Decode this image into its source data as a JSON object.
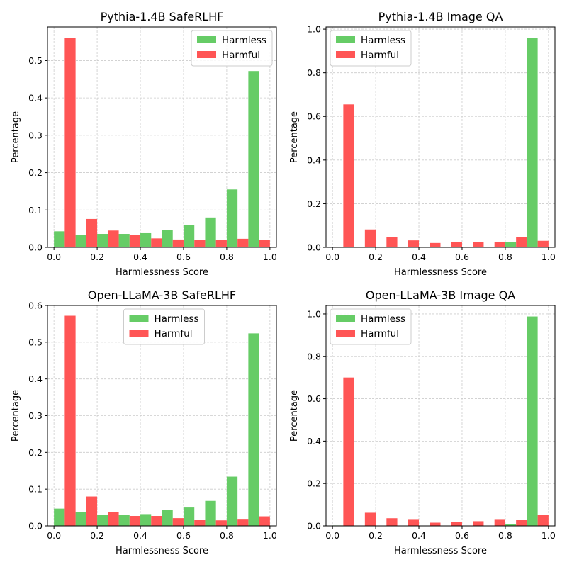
{
  "colors": {
    "harmless": "#66cc66",
    "harmful": "#ff5555"
  },
  "chart_data": [
    {
      "type": "bar",
      "title": "Pythia-1.4B SafeRLHF",
      "xlabel": "Harmlessness Score",
      "ylabel": "Percentage",
      "bin_edges": [
        0,
        0.1,
        0.2,
        0.3,
        0.4,
        0.5,
        0.6,
        0.7,
        0.8,
        0.9,
        1.0
      ],
      "xlim": [
        -0.03,
        1.03
      ],
      "ylim": [
        0,
        0.59
      ],
      "xticks": [
        0.0,
        0.2,
        0.4,
        0.6,
        0.8,
        1.0
      ],
      "xtick_labels": [
        "0.0",
        "0.2",
        "0.4",
        "0.6",
        "0.8",
        "1.0"
      ],
      "yticks": [
        0.0,
        0.1,
        0.2,
        0.3,
        0.4,
        0.5
      ],
      "ytick_labels": [
        "0.0",
        "0.1",
        "0.2",
        "0.3",
        "0.4",
        "0.5"
      ],
      "grid": true,
      "legend_position": "top-right",
      "series": [
        {
          "name": "Harmless",
          "values": [
            0.043,
            0.034,
            0.036,
            0.036,
            0.038,
            0.047,
            0.06,
            0.08,
            0.155,
            0.472
          ]
        },
        {
          "name": "Harmful",
          "values": [
            0.56,
            0.076,
            0.045,
            0.033,
            0.024,
            0.021,
            0.02,
            0.02,
            0.023,
            0.02
          ]
        }
      ]
    },
    {
      "type": "bar",
      "title": "Pythia-1.4B Image QA",
      "xlabel": "Harmlessness Score",
      "ylabel": "Percentage",
      "bin_edges": [
        0,
        0.1,
        0.2,
        0.3,
        0.4,
        0.5,
        0.6,
        0.7,
        0.8,
        0.9,
        1.0
      ],
      "xlim": [
        -0.03,
        1.03
      ],
      "ylim": [
        0,
        1.01
      ],
      "xticks": [
        0.0,
        0.2,
        0.4,
        0.6,
        0.8,
        1.0
      ],
      "xtick_labels": [
        "0.0",
        "0.2",
        "0.4",
        "0.6",
        "0.8",
        "1.0"
      ],
      "yticks": [
        0.0,
        0.2,
        0.4,
        0.6,
        0.8,
        1.0
      ],
      "ytick_labels": [
        "0.0",
        "0.2",
        "0.4",
        "0.6",
        "0.8",
        "1.0"
      ],
      "grid": true,
      "legend_position": "top-left",
      "series": [
        {
          "name": "Harmless",
          "values": [
            0,
            0,
            0,
            0,
            0,
            0,
            0,
            0,
            0.025,
            0.96
          ]
        },
        {
          "name": "Harmful",
          "values": [
            0.655,
            0.082,
            0.048,
            0.032,
            0.02,
            0.026,
            0.025,
            0.026,
            0.046,
            0.03
          ]
        }
      ]
    },
    {
      "type": "bar",
      "title": "Open-LLaMA-3B SafeRLHF",
      "xlabel": "Harmlessness Score",
      "ylabel": "Percentage",
      "bin_edges": [
        0,
        0.1,
        0.2,
        0.3,
        0.4,
        0.5,
        0.6,
        0.7,
        0.8,
        0.9,
        1.0
      ],
      "xlim": [
        -0.03,
        1.03
      ],
      "ylim": [
        0,
        0.6
      ],
      "xticks": [
        0.0,
        0.2,
        0.4,
        0.6,
        0.8,
        1.0
      ],
      "xtick_labels": [
        "0.0",
        "0.2",
        "0.4",
        "0.6",
        "0.8",
        "1.0"
      ],
      "yticks": [
        0.0,
        0.1,
        0.2,
        0.3,
        0.4,
        0.5,
        0.6
      ],
      "ytick_labels": [
        "0.0",
        "0.1",
        "0.2",
        "0.3",
        "0.4",
        "0.5",
        "0.6"
      ],
      "grid": true,
      "legend_position": "top-center",
      "series": [
        {
          "name": "Harmless",
          "values": [
            0.047,
            0.037,
            0.03,
            0.03,
            0.032,
            0.043,
            0.05,
            0.068,
            0.134,
            0.524
          ]
        },
        {
          "name": "Harmful",
          "values": [
            0.572,
            0.08,
            0.038,
            0.027,
            0.027,
            0.021,
            0.017,
            0.015,
            0.019,
            0.026
          ]
        }
      ]
    },
    {
      "type": "bar",
      "title": "Open-LLaMA-3B Image QA",
      "xlabel": "Harmlessness Score",
      "ylabel": "Percentage",
      "bin_edges": [
        0,
        0.1,
        0.2,
        0.3,
        0.4,
        0.5,
        0.6,
        0.7,
        0.8,
        0.9,
        1.0
      ],
      "xlim": [
        -0.03,
        1.03
      ],
      "ylim": [
        0,
        1.04
      ],
      "xticks": [
        0.0,
        0.2,
        0.4,
        0.6,
        0.8,
        1.0
      ],
      "xtick_labels": [
        "0.0",
        "0.2",
        "0.4",
        "0.6",
        "0.8",
        "1.0"
      ],
      "yticks": [
        0.0,
        0.2,
        0.4,
        0.6,
        0.8,
        1.0
      ],
      "ytick_labels": [
        "0.0",
        "0.2",
        "0.4",
        "0.6",
        "0.8",
        "1.0"
      ],
      "grid": true,
      "legend_position": "top-left",
      "series": [
        {
          "name": "Harmless",
          "values": [
            0.002,
            0,
            0,
            0,
            0,
            0,
            0,
            0,
            0.008,
            0.988
          ]
        },
        {
          "name": "Harmful",
          "values": [
            0.7,
            0.062,
            0.036,
            0.032,
            0.015,
            0.018,
            0.022,
            0.032,
            0.03,
            0.052
          ]
        }
      ]
    }
  ]
}
